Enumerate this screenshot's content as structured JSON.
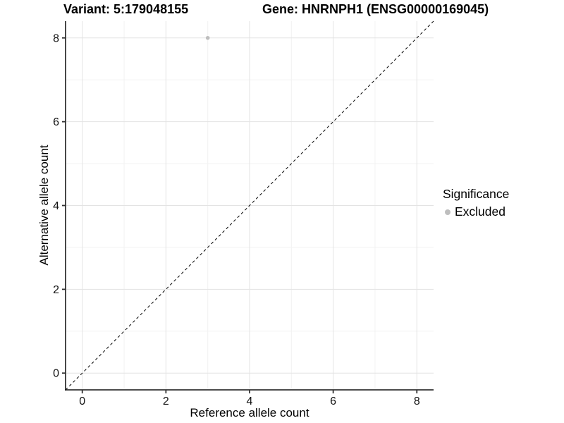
{
  "chart_data": {
    "type": "scatter",
    "title_left": "Variant: 5:179048155",
    "title_right": "Gene: HNRNPH1 (ENSG00000169045)",
    "xlabel": "Reference allele count",
    "ylabel": "Alternative allele count",
    "xlim": [
      -0.4,
      8.4
    ],
    "ylim": [
      -0.4,
      8.4
    ],
    "x_ticks": [
      0,
      2,
      4,
      6,
      8
    ],
    "y_ticks": [
      0,
      2,
      4,
      6,
      8
    ],
    "x_minor_ticks": [
      1,
      3,
      5,
      7
    ],
    "y_minor_ticks": [
      1,
      3,
      5,
      7
    ],
    "grid": "major+minor",
    "series": [
      {
        "name": "Excluded",
        "color": "#BEBEBE",
        "points": [
          {
            "x": 3,
            "y": 8
          }
        ]
      }
    ],
    "reference_line": {
      "type": "identity",
      "slope": 1,
      "intercept": 0,
      "style": "dashed",
      "color": "#000000"
    },
    "legend": {
      "title": "Significance",
      "position": "right",
      "entries": [
        {
          "label": "Excluded",
          "color": "#BEBEBE"
        }
      ]
    }
  },
  "colors": {
    "background": "#FFFFFF",
    "major_grid": "#E3E3E3",
    "minor_grid": "#F2F2F2",
    "axis_line": "#333333",
    "tick_text": "#111111",
    "point": "#BEBEBE"
  }
}
